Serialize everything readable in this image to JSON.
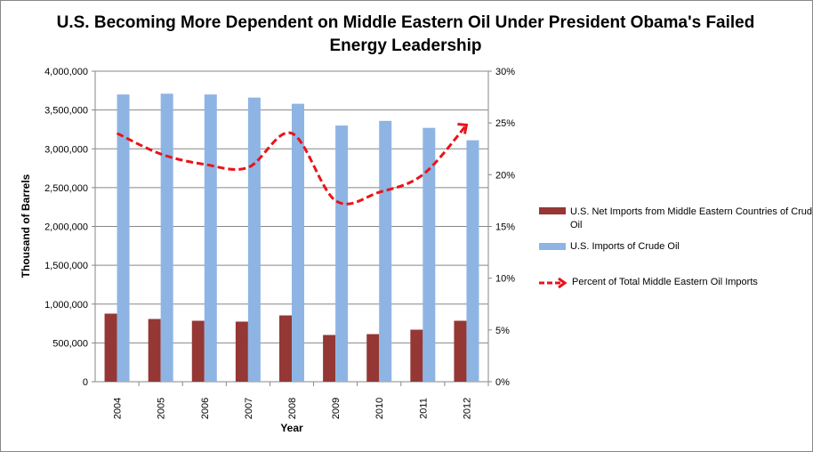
{
  "chart_data": {
    "type": "bar",
    "title": "U.S. Becoming More Dependent on Middle Eastern Oil Under President Obama's Failed Energy Leadership",
    "xlabel": "Year",
    "ylabel": "Thousand of Barrels",
    "categories": [
      "2004",
      "2005",
      "2006",
      "2007",
      "2008",
      "2009",
      "2010",
      "2011",
      "2012"
    ],
    "ylim": [
      0,
      4000000
    ],
    "y_ticks": [
      "0",
      "500,000",
      "1,000,000",
      "1,500,000",
      "2,000,000",
      "2,500,000",
      "3,000,000",
      "3,500,000",
      "4,000,000"
    ],
    "y2lim": [
      0,
      30
    ],
    "y2_ticks": [
      "0%",
      "5%",
      "10%",
      "15%",
      "20%",
      "25%",
      "30%"
    ],
    "grid": true,
    "legend": "right",
    "series": [
      {
        "name": "U.S. Net Imports from Middle Eastern Countries of Crude Oil",
        "type": "bar",
        "color": "#953735",
        "values": [
          877000,
          808000,
          785000,
          774000,
          854000,
          602000,
          613000,
          670000,
          785000
        ]
      },
      {
        "name": "U.S. Imports of Crude Oil",
        "type": "bar",
        "color": "#8EB4E3",
        "values": [
          3700000,
          3710000,
          3700000,
          3660000,
          3580000,
          3300000,
          3360000,
          3270000,
          3110000
        ]
      },
      {
        "name": "Percent of Total Middle Eastern Oil Imports",
        "type": "line",
        "axis": "right",
        "style": "dashed-arrow",
        "color": "#E8141B",
        "values": [
          24.0,
          22.0,
          21.0,
          20.7,
          24.0,
          17.5,
          18.3,
          20.0,
          24.8
        ]
      }
    ]
  }
}
